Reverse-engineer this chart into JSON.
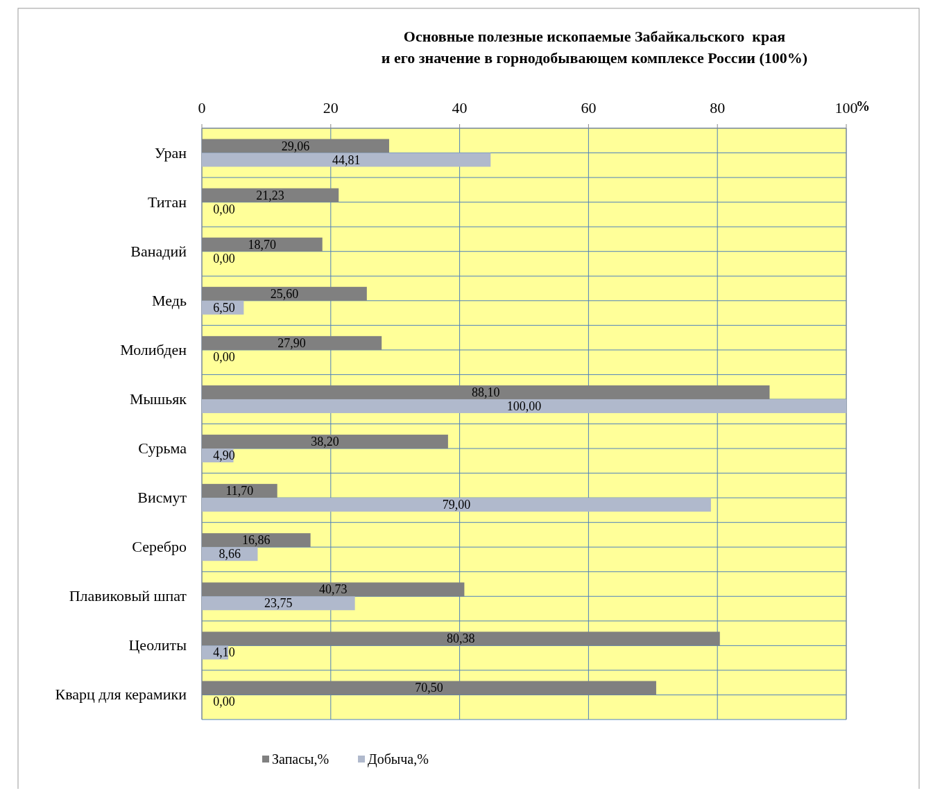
{
  "chart_data": {
    "type": "bar",
    "orientation": "horizontal",
    "title": "Основные полезные ископаемые Забайкальского  края\nи его значение в горнодобывающем комплексе России (100%)",
    "xlabel": "%",
    "categories": [
      "Уран",
      "Титан",
      "Ванадий",
      "Медь",
      "Молибден",
      "Мышьяк",
      "Сурьма",
      "Висмут",
      "Серебро",
      "Плавиковый шпат",
      "Цеолиты",
      "Кварц для керамики"
    ],
    "series": [
      {
        "name": "Запасы,%",
        "color": "#808080",
        "values": [
          29.06,
          21.23,
          18.7,
          25.6,
          27.9,
          88.1,
          38.2,
          11.7,
          16.86,
          40.73,
          80.38,
          70.5
        ],
        "value_labels": [
          "29,06",
          "21,23",
          "18,70",
          "25,60",
          "27,90",
          "88,10",
          "38,20",
          "11,70",
          "16,86",
          "40,73",
          "80,38",
          "70,50"
        ]
      },
      {
        "name": "Добыча,%",
        "color": "#b0b9cc",
        "values": [
          44.81,
          0,
          0,
          6.5,
          0,
          100,
          4.9,
          79,
          8.66,
          23.75,
          4.1,
          0
        ],
        "value_labels": [
          "44,81",
          "0,00",
          "0,00",
          "6,50",
          "0,00",
          "100,00",
          "4,90",
          "79,00",
          "8,66",
          "23,75",
          "4,10",
          "0,00"
        ]
      }
    ],
    "xlim": [
      0,
      100
    ],
    "xticks": [
      0,
      20,
      40,
      60,
      80,
      100
    ],
    "grid": true,
    "legend": "bottom"
  }
}
